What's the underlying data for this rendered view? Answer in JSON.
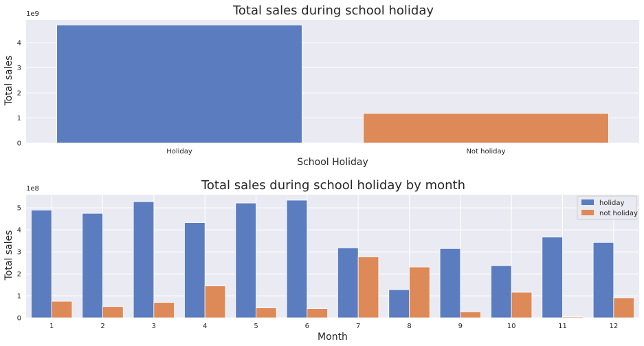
{
  "colors": {
    "background": "#eaeaf2",
    "grid": "#ffffff",
    "holiday": "#5b7dc0",
    "not_holiday": "#de8958"
  },
  "chart_data": [
    {
      "type": "bar",
      "title": "Total sales during school holiday",
      "xlabel": "School Holiday",
      "ylabel": "Total sales",
      "y_multiplier_label": "1e9",
      "categories": [
        "Holiday",
        "Not holiday"
      ],
      "values": [
        4.7,
        1.18
      ],
      "ylim": [
        0,
        4.9
      ],
      "yticks": [
        0,
        1,
        2,
        3,
        4
      ],
      "grid": true
    },
    {
      "type": "bar",
      "title": "Total sales during school holiday by month",
      "xlabel": "Month",
      "ylabel": "Total sales",
      "y_multiplier_label": "1e8",
      "categories": [
        "1",
        "2",
        "3",
        "4",
        "5",
        "6",
        "7",
        "8",
        "9",
        "10",
        "11",
        "12"
      ],
      "series": [
        {
          "name": "holiday",
          "values": [
            4.9,
            4.75,
            5.28,
            4.33,
            5.22,
            5.35,
            3.18,
            1.28,
            3.15,
            2.37,
            3.67,
            3.43
          ]
        },
        {
          "name": "not holiday",
          "values": [
            0.75,
            0.51,
            0.7,
            1.45,
            0.45,
            0.42,
            2.77,
            2.31,
            0.27,
            1.16,
            0.04,
            0.91
          ]
        }
      ],
      "ylim": [
        0,
        5.6
      ],
      "yticks": [
        0,
        1,
        2,
        3,
        4,
        5
      ],
      "legend": "top-right",
      "grid": true
    }
  ]
}
